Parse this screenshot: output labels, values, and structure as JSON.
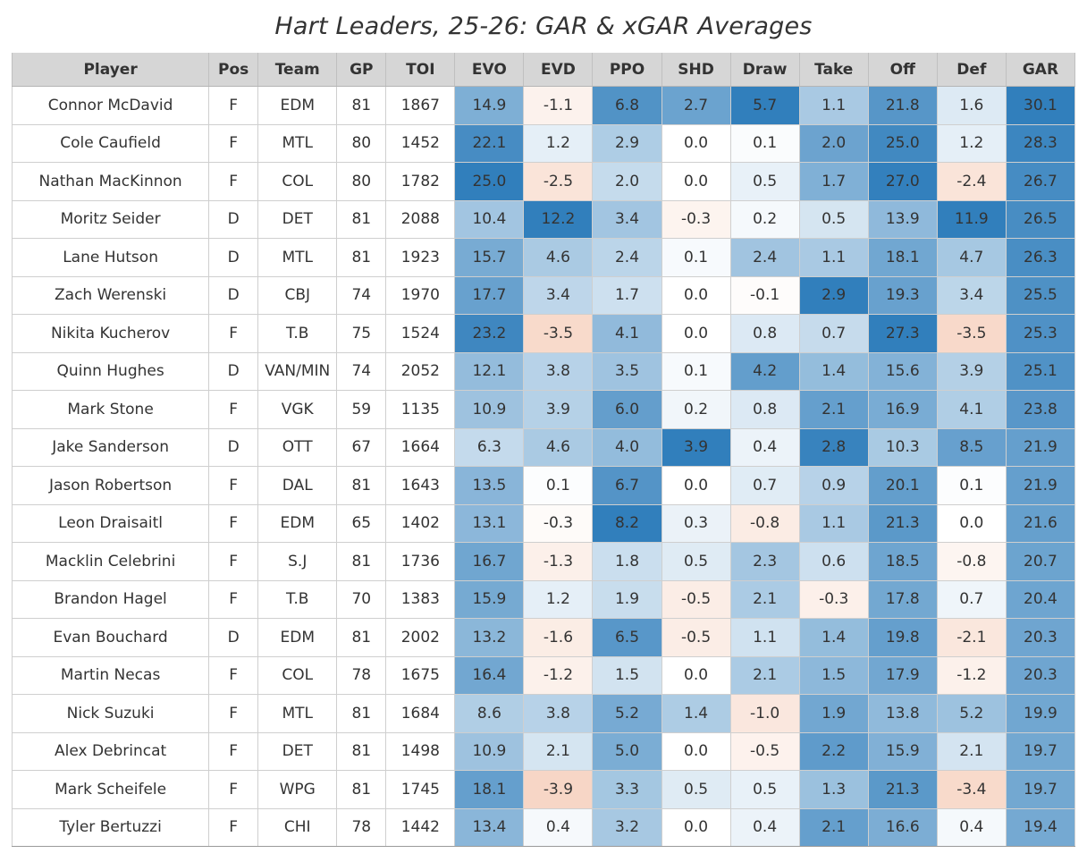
{
  "chart_data": {
    "type": "table",
    "title": "Hart Leaders, 25-26: GAR & xGAR Averages",
    "columns": [
      "Player",
      "Pos",
      "Team",
      "GP",
      "TOI",
      "EVO",
      "EVD",
      "PPO",
      "SHD",
      "Draw",
      "Take",
      "Off",
      "Def",
      "GAR"
    ],
    "rows": [
      [
        "Connor McDavid",
        "F",
        "EDM",
        "81",
        "1867",
        "14.9",
        "-1.1",
        "6.8",
        "2.7",
        "5.7",
        "1.1",
        "21.8",
        "1.6",
        "30.1"
      ],
      [
        "Cole Caufield",
        "F",
        "MTL",
        "80",
        "1452",
        "22.1",
        "1.2",
        "2.9",
        "0.0",
        "0.1",
        "2.0",
        "25.0",
        "1.2",
        "28.3"
      ],
      [
        "Nathan MacKinnon",
        "F",
        "COL",
        "80",
        "1782",
        "25.0",
        "-2.5",
        "2.0",
        "0.0",
        "0.5",
        "1.7",
        "27.0",
        "-2.4",
        "26.7"
      ],
      [
        "Moritz Seider",
        "D",
        "DET",
        "81",
        "2088",
        "10.4",
        "12.2",
        "3.4",
        "-0.3",
        "0.2",
        "0.5",
        "13.9",
        "11.9",
        "26.5"
      ],
      [
        "Lane Hutson",
        "D",
        "MTL",
        "81",
        "1923",
        "15.7",
        "4.6",
        "2.4",
        "0.1",
        "2.4",
        "1.1",
        "18.1",
        "4.7",
        "26.3"
      ],
      [
        "Zach Werenski",
        "D",
        "CBJ",
        "74",
        "1970",
        "17.7",
        "3.4",
        "1.7",
        "0.0",
        "-0.1",
        "2.9",
        "19.3",
        "3.4",
        "25.5"
      ],
      [
        "Nikita Kucherov",
        "F",
        "T.B",
        "75",
        "1524",
        "23.2",
        "-3.5",
        "4.1",
        "0.0",
        "0.8",
        "0.7",
        "27.3",
        "-3.5",
        "25.3"
      ],
      [
        "Quinn Hughes",
        "D",
        "VAN/MIN",
        "74",
        "2052",
        "12.1",
        "3.8",
        "3.5",
        "0.1",
        "4.2",
        "1.4",
        "15.6",
        "3.9",
        "25.1"
      ],
      [
        "Mark Stone",
        "F",
        "VGK",
        "59",
        "1135",
        "10.9",
        "3.9",
        "6.0",
        "0.2",
        "0.8",
        "2.1",
        "16.9",
        "4.1",
        "23.8"
      ],
      [
        "Jake Sanderson",
        "D",
        "OTT",
        "67",
        "1664",
        "6.3",
        "4.6",
        "4.0",
        "3.9",
        "0.4",
        "2.8",
        "10.3",
        "8.5",
        "21.9"
      ],
      [
        "Jason Robertson",
        "F",
        "DAL",
        "81",
        "1643",
        "13.5",
        "0.1",
        "6.7",
        "0.0",
        "0.7",
        "0.9",
        "20.1",
        "0.1",
        "21.9"
      ],
      [
        "Leon Draisaitl",
        "F",
        "EDM",
        "65",
        "1402",
        "13.1",
        "-0.3",
        "8.2",
        "0.3",
        "-0.8",
        "1.1",
        "21.3",
        "0.0",
        "21.6"
      ],
      [
        "Macklin Celebrini",
        "F",
        "S.J",
        "81",
        "1736",
        "16.7",
        "-1.3",
        "1.8",
        "0.5",
        "2.3",
        "0.6",
        "18.5",
        "-0.8",
        "20.7"
      ],
      [
        "Brandon Hagel",
        "F",
        "T.B",
        "70",
        "1383",
        "15.9",
        "1.2",
        "1.9",
        "-0.5",
        "2.1",
        "-0.3",
        "17.8",
        "0.7",
        "20.4"
      ],
      [
        "Evan Bouchard",
        "D",
        "EDM",
        "81",
        "2002",
        "13.2",
        "-1.6",
        "6.5",
        "-0.5",
        "1.1",
        "1.4",
        "19.8",
        "-2.1",
        "20.3"
      ],
      [
        "Martin Necas",
        "F",
        "COL",
        "78",
        "1675",
        "16.4",
        "-1.2",
        "1.5",
        "0.0",
        "2.1",
        "1.5",
        "17.9",
        "-1.2",
        "20.3"
      ],
      [
        "Nick Suzuki",
        "F",
        "MTL",
        "81",
        "1684",
        "8.6",
        "3.8",
        "5.2",
        "1.4",
        "-1.0",
        "1.9",
        "13.8",
        "5.2",
        "19.9"
      ],
      [
        "Alex Debrincat",
        "F",
        "DET",
        "81",
        "1498",
        "10.9",
        "2.1",
        "5.0",
        "0.0",
        "-0.5",
        "2.2",
        "15.9",
        "2.1",
        "19.7"
      ],
      [
        "Mark Scheifele",
        "F",
        "WPG",
        "81",
        "1745",
        "18.1",
        "-3.9",
        "3.3",
        "0.5",
        "0.5",
        "1.3",
        "21.3",
        "-3.4",
        "19.7"
      ],
      [
        "Tyler Bertuzzi",
        "F",
        "CHI",
        "78",
        "1442",
        "13.4",
        "0.4",
        "3.2",
        "0.0",
        "0.4",
        "2.1",
        "16.6",
        "0.4",
        "19.4"
      ]
    ],
    "color_scale": {
      "positive": "#2b7bba",
      "neutral": "#ffffff",
      "negative": "#e88a5a"
    },
    "group_separators_before": [
      "EVO",
      "Draw",
      "Off",
      "GAR"
    ]
  }
}
